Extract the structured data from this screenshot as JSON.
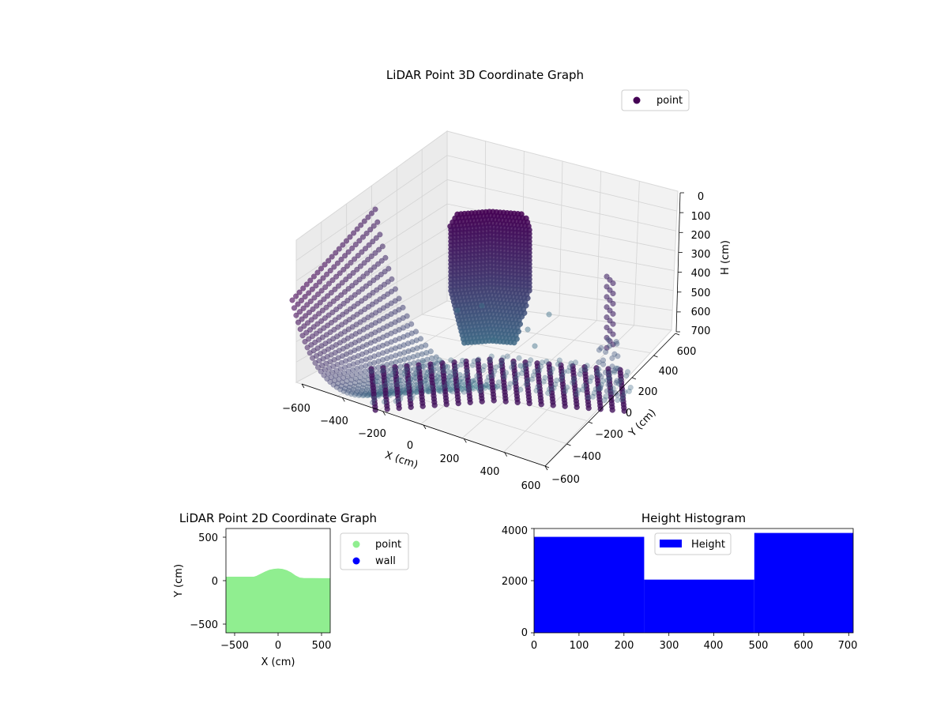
{
  "colors": {
    "viridis_dark": "#440154",
    "viridis_teal": "#3e7a8e",
    "legend_point_3d": "#440154",
    "point_2d": "#90ee90",
    "wall_2d": "#0000ff",
    "histogram": "#0000ff"
  },
  "chart_data": [
    {
      "type": "scatter",
      "title": "LiDAR Point 3D Coordinate Graph",
      "xlabel": "X (cm)",
      "ylabel": "Y (cm)",
      "zlabel": "H (cm)",
      "x_ticks": [
        "−600",
        "−400",
        "−200",
        "0",
        "200",
        "400",
        "600"
      ],
      "y_ticks": [
        "−600",
        "−400",
        "−200",
        "0",
        "200",
        "400",
        "600"
      ],
      "z_ticks": [
        "0",
        "100",
        "200",
        "300",
        "400",
        "500",
        "600",
        "700"
      ],
      "xlim": [
        -600,
        600
      ],
      "ylim": [
        -600,
        600
      ],
      "zlim": [
        700,
        0
      ],
      "legend": [
        "point"
      ],
      "legend_position": "top-right",
      "grid": true
    },
    {
      "type": "scatter",
      "title": "LiDAR Point 2D Coordinate Graph",
      "xlabel": "X (cm)",
      "ylabel": "Y (cm)",
      "x_ticks": [
        "−500",
        "0",
        "500"
      ],
      "y_ticks": [
        "500",
        "0",
        "−500"
      ],
      "xlim": [
        -600,
        600
      ],
      "ylim": [
        -600,
        600
      ],
      "legend": [
        "point",
        "wall"
      ],
      "legend_position": "outside-right",
      "point_region_top": [
        [
          -600,
          45
        ],
        [
          -400,
          45
        ],
        [
          -280,
          45
        ],
        [
          -250,
          55
        ],
        [
          -200,
          80
        ],
        [
          -150,
          105
        ],
        [
          -100,
          125
        ],
        [
          -50,
          135
        ],
        [
          0,
          140
        ],
        [
          50,
          135
        ],
        [
          100,
          120
        ],
        [
          150,
          95
        ],
        [
          200,
          60
        ],
        [
          250,
          35
        ],
        [
          300,
          30
        ],
        [
          400,
          30
        ],
        [
          500,
          28
        ],
        [
          600,
          28
        ]
      ]
    },
    {
      "type": "bar",
      "title": "Height Histogram",
      "xlabel": "",
      "ylabel": "",
      "bins": [
        {
          "x0": 0,
          "x1": 245,
          "count": 3680
        },
        {
          "x0": 245,
          "x1": 490,
          "count": 2040
        },
        {
          "x0": 490,
          "x1": 710,
          "count": 3830
        }
      ],
      "x_ticks": [
        "0",
        "100",
        "200",
        "300",
        "400",
        "500",
        "600",
        "700"
      ],
      "y_ticks": [
        "0",
        "2000",
        "4000"
      ],
      "xlim": [
        0,
        710
      ],
      "ylim": [
        0,
        4000
      ],
      "legend": [
        "Height"
      ],
      "legend_position": "upper-center"
    }
  ]
}
